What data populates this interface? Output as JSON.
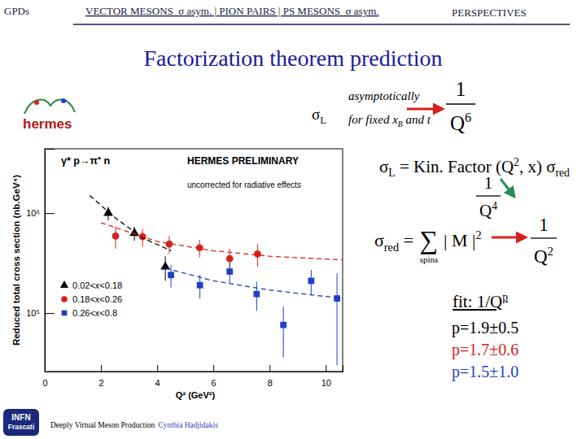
{
  "slide": {
    "header": {
      "left": "GPDs",
      "middle": "VECTOR MESONS  σ asym. | PION PAIRS | PS MESONS  σ asym.",
      "right": "PERSPECTIVES"
    },
    "title": "Factorization theorem prediction",
    "logo": "hermes",
    "sigma_l": [
      "σ",
      {
        "sub": "L"
      }
    ],
    "asymptotic": {
      "above": "asymptotically",
      "below": [
        "for fixed x",
        {
          "sub": "B"
        },
        " and t"
      ]
    },
    "fraction_q6": {
      "num": "1",
      "den": [
        "Q",
        {
          "sup": "6"
        }
      ]
    },
    "formula_kin": [
      "σ",
      {
        "sub": "L"
      },
      " = Kin. Factor  (Q",
      {
        "sup": "2"
      },
      ", x)  σ",
      {
        "sub": "red"
      }
    ],
    "fraction_q4": {
      "num": "1",
      "den": [
        "Q",
        {
          "sup": "4"
        }
      ]
    },
    "formula_red": {
      "left": [
        "σ",
        {
          "sub": "red"
        },
        " = "
      ],
      "sum": "∑",
      "under": "spins",
      "right": [
        "| M |",
        {
          "sup": "2"
        }
      ]
    },
    "fraction_q2": {
      "num": "1",
      "den": [
        "Q",
        {
          "sup": "2"
        }
      ]
    },
    "fit": {
      "label": [
        "fit: 1/Q",
        {
          "sup": "p"
        }
      ],
      "results": [
        {
          "text": "p=1.9±0.5",
          "color": "#000000"
        },
        {
          "text": "p=1.7±0.6",
          "color": "#d9201a"
        },
        {
          "text": "p=1.5±1.0",
          "color": "#1f3fc8"
        }
      ]
    },
    "footer": {
      "talk": "Deeply Virtual Meson Production",
      "author": "Cynthia Hadjidakis"
    },
    "institute": [
      "INFN",
      "Frascati"
    ]
  },
  "chart_data": {
    "type": "scatter",
    "x_label": "Q² (GeV²)",
    "y_label": "Reduced total cross section (nb.GeV⁴)",
    "annotations": [
      "γ* p→π⁺ n",
      "HERMES PRELIMINARY",
      "uncorrected for radiative effects"
    ],
    "log": "y",
    "xlim": [
      0,
      10.6
    ],
    "xticks": [
      0,
      2,
      4,
      6,
      8,
      10
    ],
    "ylim": [
      26000,
      4400000
    ],
    "yticks": [
      {
        "value": 100000,
        "label": "10⁵"
      },
      {
        "value": 1000000,
        "label": "10⁶"
      }
    ],
    "legend": "lower left",
    "series": [
      {
        "name": "0.02<x<0.18",
        "type": "scatter",
        "marker": "triangle",
        "color": "#000000",
        "x": [
          2.26,
          3.19,
          4.29
        ],
        "values": [
          1000000,
          630000,
          290000
        ],
        "errors": [
          150000,
          100000,
          80000
        ]
      },
      {
        "name": "0.18<x<0.26",
        "type": "scatter",
        "marker": "circle",
        "color": "#d9201a",
        "x": [
          2.52,
          3.48,
          4.43,
          5.51,
          6.58,
          7.57
        ],
        "values": [
          590000,
          580000,
          490000,
          450000,
          350000,
          390000
        ],
        "errors": [
          150000,
          120000,
          100000,
          90000,
          90000,
          100000
        ]
      },
      {
        "name": "0.26<x<0.8",
        "type": "scatter",
        "marker": "square",
        "color": "#1f3fc8",
        "x": [
          4.49,
          5.52,
          6.58,
          7.54,
          8.49,
          9.48,
          10.4
        ],
        "values": [
          240000,
          190000,
          260000,
          155000,
          76000,
          210000,
          140000
        ],
        "errors": [
          60000,
          50000,
          60000,
          50000,
          40000,
          60000,
          110000
        ]
      },
      {
        "type": "line",
        "line_style": "dashed",
        "color": "#000000",
        "x": [
          1.6,
          2.5,
          3.5,
          4.5
        ],
        "values": [
          1500000,
          900000,
          560000,
          420000
        ]
      },
      {
        "type": "line",
        "line_style": "dashed",
        "color": "#d9201a",
        "x": [
          2,
          4,
          6,
          8,
          10.6
        ],
        "values": [
          800000,
          520000,
          420000,
          370000,
          340000
        ]
      },
      {
        "type": "line",
        "line_style": "dashed",
        "color": "#1f3fc8",
        "x": [
          4.3,
          6,
          8,
          10.6
        ],
        "values": [
          280000,
          210000,
          170000,
          140000
        ]
      }
    ]
  }
}
